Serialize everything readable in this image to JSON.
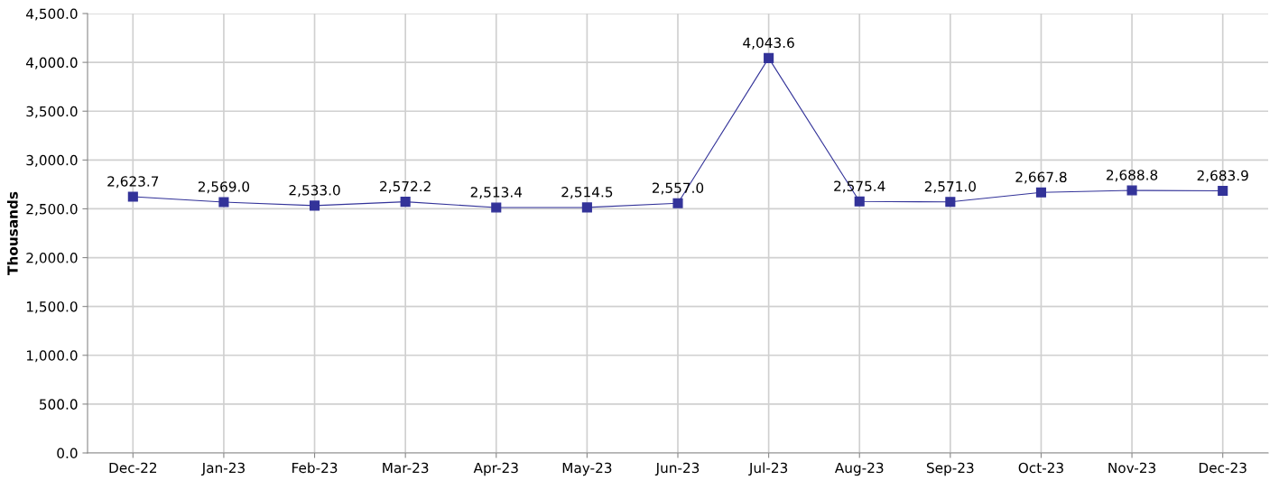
{
  "chart_data": {
    "type": "line",
    "ylabel": "Thousands",
    "categories": [
      "Dec-22",
      "Jan-23",
      "Feb-23",
      "Mar-23",
      "Apr-23",
      "May-23",
      "Jun-23",
      "Jul-23",
      "Aug-23",
      "Sep-23",
      "Oct-23",
      "Nov-23",
      "Dec-23"
    ],
    "series": [
      {
        "color": "#333399",
        "values": [
          2623.7,
          2569.0,
          2533.0,
          2572.2,
          2513.4,
          2514.5,
          2557.0,
          4043.6,
          2575.4,
          2571.0,
          2667.8,
          2688.8,
          2683.9
        ],
        "value_labels": [
          "2,623.7",
          "2,569.0",
          "2,533.0",
          "2,572.2",
          "2,513.4",
          "2,514.5",
          "2,557.0",
          "4,043.6",
          "2,575.4",
          "2,571.0",
          "2,667.8",
          "2,688.8",
          "2,683.9"
        ]
      }
    ],
    "ylim": [
      0,
      4500
    ],
    "yticks": [
      {
        "value": 0,
        "label": "0.0"
      },
      {
        "value": 500,
        "label": "500.0"
      },
      {
        "value": 1000,
        "label": "1,000.0"
      },
      {
        "value": 1500,
        "label": "1,500.0"
      },
      {
        "value": 2000,
        "label": "2,000.0"
      },
      {
        "value": 2500,
        "label": "2,500.0"
      },
      {
        "value": 3000,
        "label": "3,000.0"
      },
      {
        "value": 3500,
        "label": "3,500.0"
      },
      {
        "value": 4000,
        "label": "4,000.0"
      },
      {
        "value": 4500,
        "label": "4,500.0"
      }
    ],
    "grid": true,
    "marker": "square",
    "line_style": "solid",
    "legend": false
  }
}
